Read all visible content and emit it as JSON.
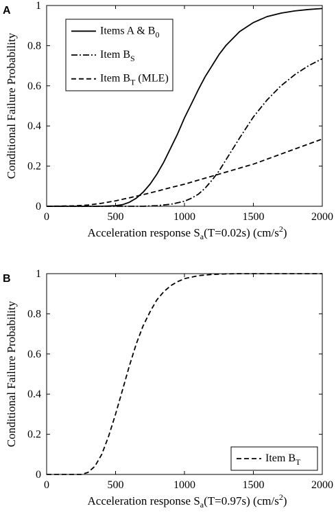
{
  "chart_data": [
    {
      "type": "line",
      "panel_label": "A",
      "xlabel": "Acceleration response S",
      "xlabel_sub": "a",
      "xlabel_mid": "(T=0.02s)   (cm/s",
      "xlabel_sup": "2",
      "xlabel_end": ")",
      "ylabel": "Conditional Failure Probability",
      "xlim": [
        0,
        2000
      ],
      "ylim": [
        0,
        1
      ],
      "xticks": [
        "0",
        "500",
        "1000",
        "1500",
        "2000"
      ],
      "yticks": [
        "0",
        "0.2",
        "0.4",
        "0.6",
        "0.8",
        "1"
      ],
      "legend_position": "top-left",
      "series": [
        {
          "name": "Items A & B",
          "name_sub": "0",
          "style": "solid",
          "x": [
            0,
            400,
            500,
            550,
            600,
            650,
            700,
            750,
            800,
            850,
            900,
            950,
            1000,
            1050,
            1100,
            1150,
            1200,
            1250,
            1300,
            1400,
            1500,
            1600,
            1700,
            1800,
            1900,
            2000
          ],
          "y": [
            0.0,
            0.0,
            0.003,
            0.008,
            0.02,
            0.04,
            0.07,
            0.11,
            0.16,
            0.22,
            0.29,
            0.36,
            0.44,
            0.51,
            0.58,
            0.645,
            0.7,
            0.755,
            0.8,
            0.87,
            0.915,
            0.945,
            0.962,
            0.973,
            0.98,
            0.985
          ]
        },
        {
          "name": "Item B",
          "name_sub": "S",
          "style": "dashdot",
          "x": [
            0,
            700,
            800,
            900,
            1000,
            1050,
            1100,
            1150,
            1200,
            1250,
            1300,
            1400,
            1500,
            1600,
            1700,
            1800,
            1900,
            2000
          ],
          "y": [
            0.0,
            0.0,
            0.003,
            0.01,
            0.025,
            0.04,
            0.06,
            0.09,
            0.13,
            0.175,
            0.23,
            0.34,
            0.445,
            0.53,
            0.6,
            0.655,
            0.7,
            0.735
          ]
        },
        {
          "name": "Item B",
          "name_sub": "T",
          "name_tail": " (MLE)",
          "style": "dashed",
          "x": [
            0,
            200,
            300,
            400,
            500,
            600,
            700,
            800,
            900,
            1000,
            1100,
            1200,
            1300,
            1400,
            1500,
            1600,
            1700,
            1800,
            1900,
            2000
          ],
          "y": [
            0.0,
            0.002,
            0.006,
            0.015,
            0.027,
            0.042,
            0.058,
            0.075,
            0.093,
            0.11,
            0.13,
            0.15,
            0.17,
            0.19,
            0.21,
            0.235,
            0.26,
            0.285,
            0.31,
            0.335
          ]
        }
      ]
    },
    {
      "type": "line",
      "panel_label": "B",
      "xlabel": "Acceleration response S",
      "xlabel_sub": "a",
      "xlabel_mid": "(T=0.97s)   (cm/s",
      "xlabel_sup": "2",
      "xlabel_end": ")",
      "ylabel": "Conditional Failure Probability",
      "xlim": [
        0,
        2000
      ],
      "ylim": [
        0,
        1
      ],
      "xticks": [
        "0",
        "500",
        "1000",
        "1500",
        "2000"
      ],
      "yticks": [
        "0",
        "0.2",
        "0.4",
        "0.6",
        "0.8",
        "1"
      ],
      "legend_position": "bottom-right",
      "series": [
        {
          "name": "Item B",
          "name_sub": "T",
          "style": "dashed",
          "x": [
            0,
            250,
            300,
            350,
            400,
            450,
            500,
            550,
            600,
            650,
            700,
            750,
            800,
            850,
            900,
            950,
            1000,
            1100,
            1200,
            1300,
            1400,
            1500,
            2000
          ],
          "y": [
            0.0,
            0.0,
            0.01,
            0.04,
            0.1,
            0.19,
            0.3,
            0.42,
            0.54,
            0.65,
            0.74,
            0.81,
            0.87,
            0.91,
            0.94,
            0.96,
            0.975,
            0.99,
            0.996,
            0.999,
            1.0,
            1.0,
            1.0
          ]
        }
      ]
    }
  ]
}
